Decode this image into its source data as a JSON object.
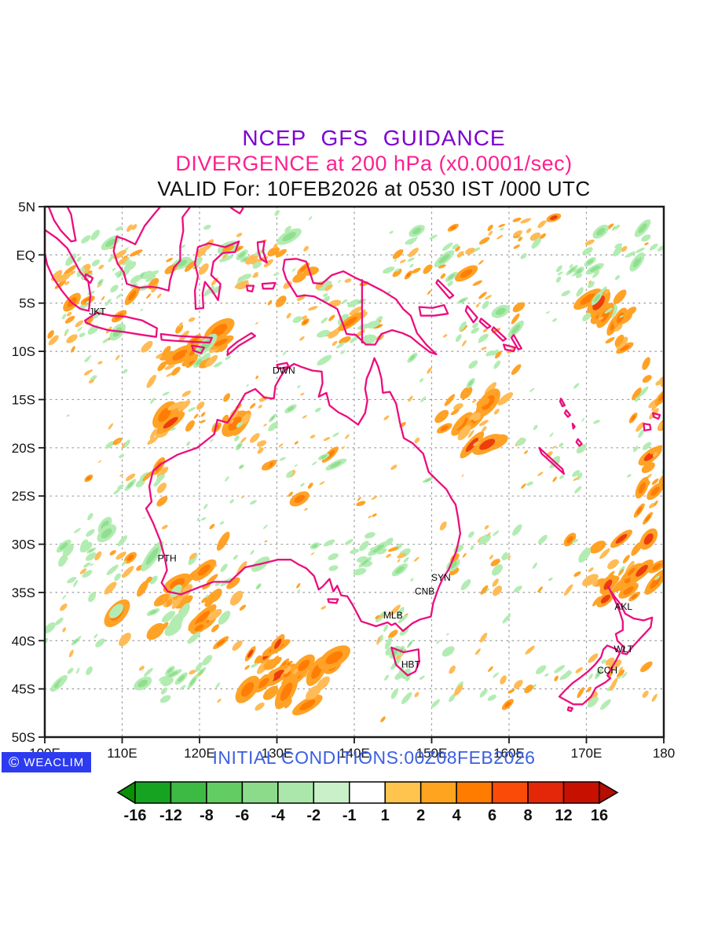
{
  "title": {
    "line1": "NCEP GFS GUIDANCE",
    "line2": "DIVERGENCE at 200 hPa (x0.0001/sec)",
    "line3": "VALID For: 10FEB2026 at 0530 IST /000 UTC"
  },
  "footer": {
    "initial_conditions": "INITIAL CONDITIONS:00Z08FEB2026",
    "logo": {
      "symbol": "©",
      "text": "WEACLIM"
    }
  },
  "map": {
    "lat_ticks": [
      {
        "label": "5N",
        "lat": 5
      },
      {
        "label": "EQ",
        "lat": 0
      },
      {
        "label": "5S",
        "lat": -5
      },
      {
        "label": "10S",
        "lat": -10
      },
      {
        "label": "15S",
        "lat": -15
      },
      {
        "label": "20S",
        "lat": -20
      },
      {
        "label": "25S",
        "lat": -25
      },
      {
        "label": "30S",
        "lat": -30
      },
      {
        "label": "35S",
        "lat": -35
      },
      {
        "label": "40S",
        "lat": -40
      },
      {
        "label": "45S",
        "lat": -45
      },
      {
        "label": "50S",
        "lat": -50
      }
    ],
    "lon_ticks": [
      {
        "label": "100E",
        "lon": 100
      },
      {
        "label": "110E",
        "lon": 110
      },
      {
        "label": "120E",
        "lon": 120
      },
      {
        "label": "130E",
        "lon": 130
      },
      {
        "label": "140E",
        "lon": 140
      },
      {
        "label": "150E",
        "lon": 150
      },
      {
        "label": "160E",
        "lon": 160
      },
      {
        "label": "170E",
        "lon": 170
      },
      {
        "label": "180",
        "lon": 180
      }
    ],
    "cities": [
      {
        "code": "JKT",
        "lon": 106.8,
        "lat": -6.2
      },
      {
        "code": "DWN",
        "lon": 130.9,
        "lat": -12.3
      },
      {
        "code": "PTH",
        "lon": 115.8,
        "lat": -31.8
      },
      {
        "code": "SYN",
        "lon": 151.2,
        "lat": -33.8
      },
      {
        "code": "CNB",
        "lon": 149.1,
        "lat": -35.2
      },
      {
        "code": "MLB",
        "lon": 145.0,
        "lat": -37.7
      },
      {
        "code": "HBT",
        "lon": 147.3,
        "lat": -42.8
      },
      {
        "code": "AKL",
        "lon": 174.8,
        "lat": -36.8
      },
      {
        "code": "WLT",
        "lon": 174.8,
        "lat": -41.2
      },
      {
        "code": "CCH",
        "lon": 172.7,
        "lat": -43.4
      }
    ]
  },
  "colorbar": {
    "tick_labels": [
      "-16",
      "-12",
      "-8",
      "-6",
      "-4",
      "-2",
      "-1",
      "1",
      "2",
      "4",
      "6",
      "8",
      "12",
      "16"
    ],
    "segment_colors": [
      "#17a322",
      "#3dba43",
      "#63cc63",
      "#8bdb8b",
      "#abe7ab",
      "#c9f0c9",
      "#ffffff",
      "#ffc44e",
      "#ffa41f",
      "#ff7c00",
      "#fb4b09",
      "#e42609",
      "#c81000"
    ],
    "left_arrow_color": "#0a9006",
    "right_arrow_color": "#b50d00"
  },
  "colors": {
    "title1": "#7d00d2",
    "title2": "#ff1f8f",
    "title3": "#111111",
    "initial_conditions": "#3c5fe0",
    "logo_bg": "#2d3bf0",
    "coastline": "#ec0e7d",
    "grid": "#9a9a9a",
    "frame": "#1a1a1a",
    "shade_light_green": "#b3ecb3",
    "shade_green": "#8fdf8f",
    "shade_light_orange": "#ffbb55",
    "shade_orange": "#ffa226",
    "shade_dark_orange": "#ff7d05",
    "shade_red": "#ee3d0d"
  }
}
